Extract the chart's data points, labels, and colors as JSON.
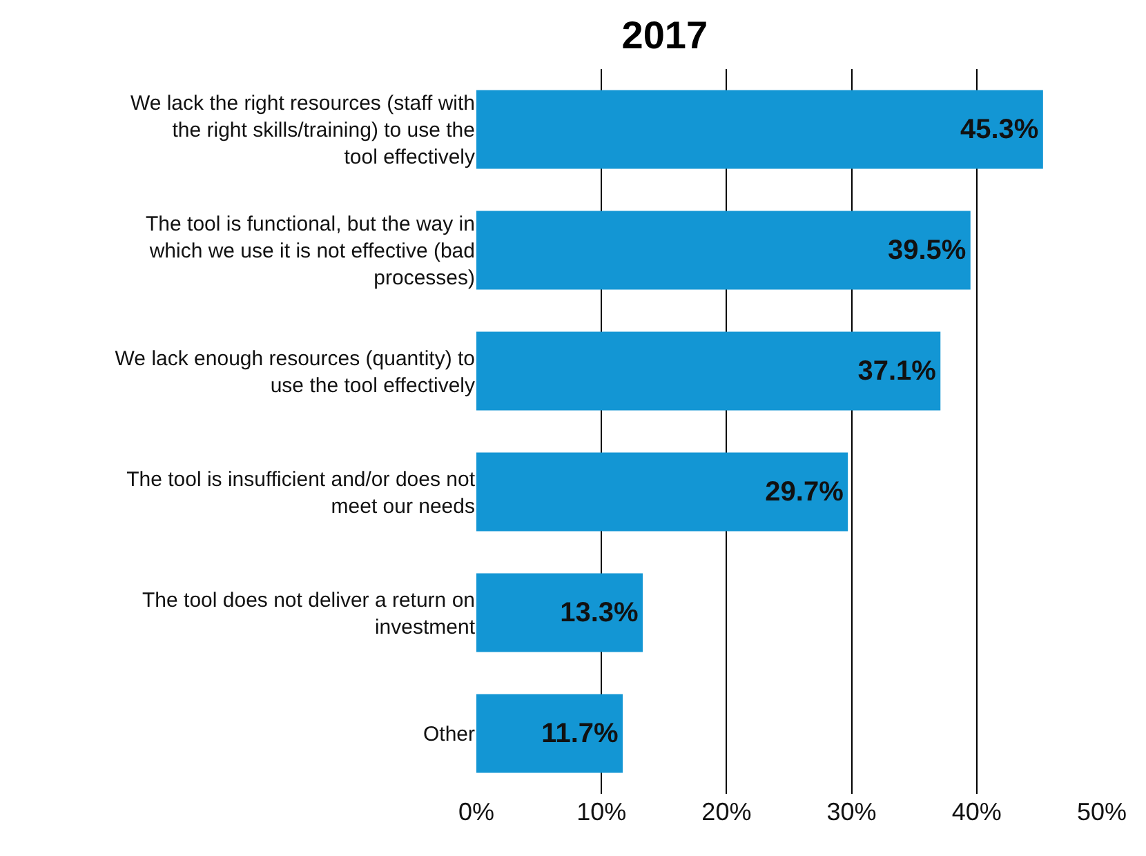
{
  "chart_data": {
    "type": "bar",
    "title": "2017",
    "orientation": "horizontal",
    "categories": [
      "We lack the right resources (staff with the right skills/training) to use the tool effectively",
      "The tool is functional, but the way in which we use it is not effective (bad processes)",
      "We lack enough resources (quantity) to use the tool effectively",
      "The tool is insufficient and/or does not meet our needs",
      "The tool does not deliver a return on investment",
      "Other"
    ],
    "values": [
      45.3,
      39.5,
      37.1,
      29.7,
      13.3,
      11.7
    ],
    "value_labels": [
      "45.3%",
      "39.5%",
      "37.1%",
      "29.7%",
      "13.3%",
      "11.7%"
    ],
    "color": "#1396d4",
    "xlim": [
      0,
      50
    ],
    "xticks": [
      {
        "value": 0,
        "label": "0%"
      },
      {
        "value": 10,
        "label": "10%"
      },
      {
        "value": 20,
        "label": "20%"
      },
      {
        "value": 30,
        "label": "30%"
      },
      {
        "value": 40,
        "label": "40%"
      },
      {
        "value": 50,
        "label": "50%"
      }
    ],
    "grid": "x"
  }
}
